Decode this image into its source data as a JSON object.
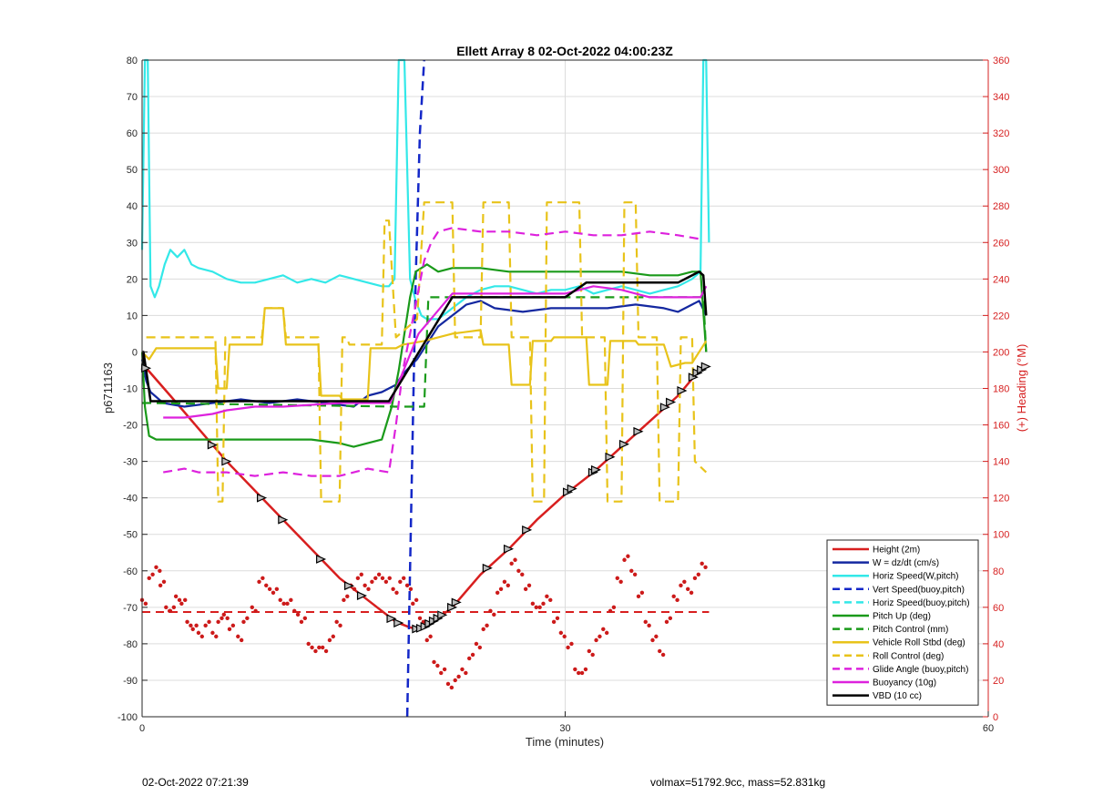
{
  "footer": {
    "left": "02-Oct-2022 07:21:39",
    "right": "volmax=51792.9cc, mass=52.831kg"
  },
  "chart_data": {
    "type": "line",
    "title": "Ellett Array 8 02-Oct-2022 04:00:23Z",
    "xlabel": "Time (minutes)",
    "ylabel": "p6711163",
    "ylabel_right": "(+) Heading (°M)",
    "xlim": [
      0,
      60
    ],
    "ylim": [
      -100,
      80
    ],
    "ylim_right": [
      0,
      360
    ],
    "xticks": [
      0,
      30,
      60
    ],
    "yticks": [
      -100,
      -90,
      -80,
      -70,
      -60,
      -50,
      -40,
      -30,
      -20,
      -10,
      0,
      10,
      20,
      30,
      40,
      50,
      60,
      70,
      80
    ],
    "yticks_right": [
      0,
      20,
      40,
      60,
      80,
      100,
      120,
      140,
      160,
      180,
      200,
      220,
      240,
      260,
      280,
      300,
      320,
      340,
      360
    ],
    "grid": true,
    "legend_position": "bottom-right",
    "colors": {
      "axis": "#262626",
      "right_axis": "#d62020",
      "grid": "#dcdcdc"
    },
    "series": [
      {
        "name": "Height (2m)",
        "color": "#d81f1f",
        "style": "solid",
        "width": 2.5,
        "x": [
          0,
          0.2,
          2,
          4,
          6,
          8,
          10,
          12,
          14,
          16,
          18,
          19,
          19.6,
          20,
          21,
          22,
          24,
          26,
          28,
          30,
          32,
          34,
          36,
          38,
          39.3,
          40
        ],
        "y": [
          -2,
          -4,
          -12,
          -21,
          -30,
          -38,
          -46,
          -54,
          -62,
          -68,
          -74,
          -75.5,
          -76,
          -75.5,
          -73,
          -70,
          -61,
          -54,
          -46,
          -39,
          -33,
          -26,
          -19,
          -12,
          -6,
          -4
        ]
      },
      {
        "name": "W = dz/dt (cm/s)",
        "color": "#1428a0",
        "style": "solid",
        "width": 2.2,
        "x": [
          0,
          0.3,
          0.6,
          1.5,
          3,
          5,
          7,
          9,
          11,
          13,
          15,
          16,
          17,
          18,
          18.5,
          19,
          19.5,
          20,
          20.5,
          21,
          22,
          23,
          24,
          25,
          27,
          29,
          31,
          33,
          35,
          37,
          38,
          39,
          39.5,
          40
        ],
        "y": [
          -2,
          -8,
          -11,
          -14,
          -15,
          -14,
          -13,
          -14,
          -13,
          -14,
          -15,
          -12,
          -11,
          -9,
          -6,
          -4,
          -2,
          1,
          4,
          7,
          10,
          13,
          14,
          12,
          11,
          12,
          12,
          12,
          13,
          12,
          11,
          13,
          14,
          10
        ]
      },
      {
        "name": "Horiz Speed(W,pitch)",
        "color": "#33e8e8",
        "style": "solid",
        "width": 2.2,
        "x": [
          0,
          0.2,
          0.4,
          0.6,
          0.9,
          1.2,
          1.6,
          2,
          2.5,
          3,
          3.5,
          4,
          5,
          6,
          7,
          8,
          9,
          10,
          11,
          12,
          13,
          14,
          15,
          16,
          17,
          17.5,
          17.9,
          18.2,
          18.6,
          19,
          19.4,
          19.8,
          20.2,
          21,
          22,
          23,
          24,
          25,
          26,
          27,
          28,
          29,
          30,
          31,
          32,
          33,
          34,
          35,
          36,
          37,
          38,
          39,
          39.6,
          39.8,
          40,
          40.2
        ],
        "y": [
          28,
          80,
          80,
          18,
          15,
          18,
          24,
          28,
          26,
          28,
          24,
          23,
          22,
          20,
          19,
          19,
          20,
          21,
          19,
          20,
          19,
          21,
          20,
          19,
          18,
          18,
          20,
          80,
          80,
          20,
          14,
          10,
          9,
          9,
          12,
          15,
          17,
          18,
          18,
          17,
          16,
          17,
          17,
          18,
          16,
          17,
          18,
          17,
          16,
          17,
          18,
          20,
          22,
          80,
          80,
          30
        ]
      },
      {
        "name": "Vert Speed(buoy,pitch)",
        "color": "#1428c8",
        "style": "dashed",
        "width": 2.5,
        "x": [
          18.8,
          19.1,
          19.4,
          19.7,
          20.0
        ],
        "y": [
          -100,
          -40,
          20,
          60,
          80
        ]
      },
      {
        "name": "Horiz Speed(buoy,pitch)",
        "color": "#33e8e8",
        "style": "dashed",
        "width": 2.2,
        "x": [],
        "y": []
      },
      {
        "name": "Pitch Up (deg)",
        "color": "#1a9a1a",
        "style": "solid",
        "width": 2.2,
        "x": [
          0,
          0.2,
          0.5,
          1,
          2,
          4,
          6,
          8,
          10,
          12,
          14,
          15,
          16,
          17,
          17.7,
          18.2,
          18.6,
          19,
          19.4,
          19.8,
          20.2,
          20.6,
          21,
          22,
          24,
          26,
          28,
          30,
          32,
          34,
          36,
          38,
          39,
          39.6,
          40
        ],
        "y": [
          0,
          -15,
          -23,
          -24,
          -24,
          -24,
          -24,
          -24,
          -24,
          -24,
          -25,
          -26,
          -25,
          -24,
          -15,
          -5,
          5,
          15,
          22,
          23,
          24,
          23,
          22,
          23,
          23,
          22,
          22,
          22,
          22,
          22,
          21,
          21,
          22,
          22,
          0
        ]
      },
      {
        "name": "Pitch Control (mm)",
        "color": "#1a9a1a",
        "style": "dashed",
        "width": 2.2,
        "x": [
          0,
          0.5,
          18,
          20,
          20.3,
          39.8,
          40
        ],
        "y": [
          -14,
          -14,
          -15,
          -15,
          15,
          15,
          0
        ]
      },
      {
        "name": "Vehicle Roll Stbd (deg)",
        "color": "#e8c31a",
        "style": "solid",
        "width": 2.2,
        "x": [
          0,
          0.5,
          1,
          5.2,
          5.4,
          6,
          6.2,
          8.5,
          8.7,
          10,
          10.2,
          12.5,
          12.7,
          14,
          14.2,
          16,
          16.2,
          18,
          18.5,
          20,
          21,
          22,
          24,
          24.2,
          26,
          26.2,
          27.5,
          27.7,
          29,
          29.2,
          31.5,
          31.7,
          33,
          33.2,
          35,
          35.2,
          37,
          37.5,
          38.5,
          39,
          40
        ],
        "y": [
          0,
          -2,
          1,
          1,
          -10,
          -10,
          2,
          2,
          12,
          12,
          2,
          2,
          -12,
          -12,
          -13,
          -13,
          1,
          1,
          2,
          3,
          4,
          5,
          6,
          2,
          2,
          -9,
          -9,
          3,
          3,
          4,
          4,
          -9,
          -9,
          3,
          3,
          2,
          2,
          -4,
          -3,
          -3,
          3
        ]
      },
      {
        "name": "Roll Control (deg)",
        "color": "#e8c31a",
        "style": "dashed",
        "width": 2.2,
        "x": [
          0.3,
          0.5,
          5.2,
          5.4,
          5.7,
          5.9,
          8.5,
          8.7,
          10,
          10.2,
          12.5,
          12.7,
          14,
          14.2,
          14.5,
          14.7,
          17,
          17.2,
          17.5,
          18,
          18.3,
          19.5,
          20,
          22,
          22.2,
          24,
          24.2,
          26,
          26.2,
          27.5,
          27.7,
          28.5,
          28.7,
          31,
          31.2,
          32.8,
          33,
          34,
          34.2,
          35,
          35.2,
          36.5,
          36.7,
          38,
          38.2,
          39,
          39.2,
          40
        ],
        "y": [
          4,
          4,
          4,
          -41,
          -41,
          4,
          4,
          12,
          12,
          4,
          4,
          -41,
          -41,
          4,
          4,
          2,
          2,
          36,
          36,
          4,
          5,
          9,
          41,
          41,
          4,
          4,
          41,
          41,
          4,
          4,
          -41,
          -41,
          41,
          41,
          4,
          4,
          -41,
          -41,
          41,
          41,
          4,
          4,
          -41,
          -41,
          4,
          4,
          -30,
          -33
        ]
      },
      {
        "name": "Glide Angle (buoy,pitch)",
        "color": "#dd22dd",
        "style": "dashed",
        "width": 2.2,
        "x": [
          1.5,
          3,
          4,
          6,
          8,
          10,
          12,
          14,
          16,
          17.5,
          18,
          18.5,
          19,
          19.5,
          20,
          20.5,
          21,
          22,
          24,
          26,
          28,
          30,
          32,
          34,
          36,
          38,
          39.5
        ],
        "y": [
          -33,
          -32,
          -33,
          -33,
          -34,
          -33,
          -34,
          -34,
          -32,
          -33,
          -20,
          -5,
          5,
          15,
          25,
          30,
          33,
          34,
          33,
          33,
          32,
          33,
          32,
          32,
          33,
          32,
          31
        ]
      },
      {
        "name": "Buoyancy (10g)",
        "color": "#dd22dd",
        "style": "solid",
        "width": 2.2,
        "x": [
          1.5,
          3,
          5,
          6,
          8,
          10,
          14,
          17.6,
          19.6,
          22,
          24,
          28,
          30,
          32,
          34,
          36,
          38,
          39.6,
          40
        ],
        "y": [
          -18,
          -18,
          -17,
          -16,
          -15,
          -15,
          -14,
          -14,
          5,
          16,
          16,
          16,
          16,
          18,
          17,
          15,
          15,
          15,
          18
        ]
      },
      {
        "name": "VBD (10 cc)",
        "color": "#000000",
        "style": "solid",
        "width": 2.5,
        "x": [
          0,
          0.1,
          0.4,
          0.6,
          1,
          17.5,
          22,
          30,
          31.5,
          38,
          39.5,
          39.8,
          40
        ],
        "y": [
          -5,
          0,
          -8,
          -13.5,
          -13.5,
          -13.5,
          15,
          15,
          19,
          19,
          22,
          21,
          10
        ]
      }
    ],
    "heading_scatter": {
      "name": "Heading (°M)",
      "color": "#cc1a1a",
      "axis": "right",
      "x": [
        0,
        0.5,
        1,
        1.3,
        1.7,
        2,
        2.4,
        2.8,
        3.2,
        3.6,
        4,
        4.5,
        5,
        5.4,
        5.8,
        6.2,
        6.8,
        7.2,
        7.8,
        8.3,
        8.8,
        9.3,
        9.8,
        10.3,
        10.8,
        11.3,
        11.8,
        12.3,
        12.8,
        13.3,
        13.8,
        14.3,
        14.8,
        15.3,
        15.8,
        16.3,
        16.8,
        17.3,
        17.8,
        18.3,
        18.8,
        19.2,
        19.7,
        20.2,
        20.7,
        21.2,
        21.7,
        22.2,
        22.7,
        23.2,
        23.7,
        24.2,
        24.7,
        25.2,
        25.7,
        26.2,
        26.7,
        27.2,
        27.7,
        28.2,
        28.7,
        29.2,
        29.7,
        30.2,
        30.7,
        31.2,
        31.7,
        32.2,
        32.7,
        33.2,
        33.7,
        34.2,
        34.7,
        35.2,
        35.7,
        36.2,
        36.7,
        37.2,
        37.7,
        38.2,
        38.7,
        39.2,
        39.7
      ],
      "y": [
        64,
        76,
        82,
        72,
        60,
        58,
        66,
        62,
        52,
        48,
        46,
        50,
        46,
        52,
        56,
        48,
        44,
        52,
        60,
        74,
        72,
        68,
        64,
        62,
        58,
        52,
        40,
        36,
        38,
        42,
        52,
        64,
        72,
        76,
        72,
        74,
        78,
        74,
        70,
        74,
        72,
        62,
        54,
        42,
        30,
        24,
        18,
        20,
        26,
        32,
        40,
        48,
        58,
        68,
        74,
        84,
        80,
        70,
        62,
        60,
        66,
        52,
        46,
        38,
        26,
        24,
        36,
        42,
        48,
        58,
        76,
        86,
        80,
        66,
        52,
        42,
        36,
        52,
        66,
        72,
        70,
        76,
        84
      ]
    },
    "legend_entries": [
      "Height (2m)",
      "W = dz/dt (cm/s)",
      "Horiz Speed(W,pitch)",
      "Vert Speed(buoy,pitch)",
      "Horiz Speed(buoy,pitch)",
      "Pitch Up (deg)",
      "Pitch Control (mm)",
      "Vehicle Roll Stbd (deg)",
      "Roll Control (deg)",
      "Glide Angle (buoy,pitch)",
      "Buoyancy (10g)",
      "VBD (10 cc)"
    ]
  }
}
